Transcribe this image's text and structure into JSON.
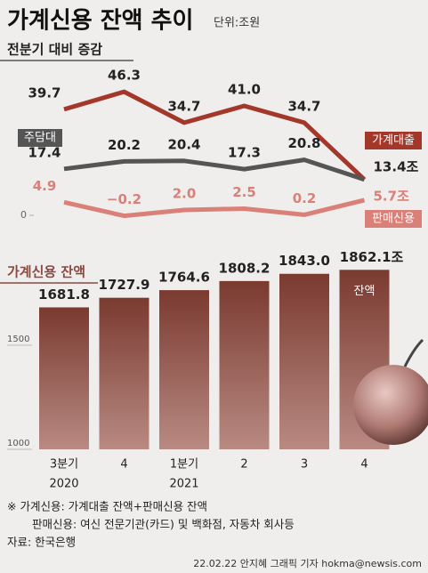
{
  "header": {
    "title": "가계신용 잔액 추이",
    "unit": "단위:조원"
  },
  "chart_data": [
    {
      "type": "line",
      "title": "전분기 대비 증감",
      "categories": [
        "3분기",
        "4",
        "1분기",
        "2",
        "3",
        "4"
      ],
      "ylim": [
        -3,
        50
      ],
      "yticks": [
        0
      ],
      "series": [
        {
          "name": "가계대출",
          "color": "#a3372a",
          "values": [
            39.7,
            46.3,
            34.7,
            41.0,
            34.7,
            13.4
          ],
          "value_labels": [
            "39.7",
            "46.3",
            "34.7",
            "41.0",
            "34.7",
            "13.4조"
          ]
        },
        {
          "name": "주담대",
          "color": "#555555",
          "values": [
            17.4,
            20.2,
            20.4,
            17.3,
            20.8,
            13.4
          ],
          "value_labels": [
            "17.4",
            "20.2",
            "20.4",
            "17.3",
            "20.8",
            null
          ]
        },
        {
          "name": "판매신용",
          "color": "#d98078",
          "values": [
            4.9,
            -0.2,
            2.0,
            2.5,
            0.2,
            5.7
          ],
          "value_labels": [
            "4.9",
            "−0.2",
            "2.0",
            "2.5",
            "0.2",
            "5.7조"
          ]
        }
      ]
    },
    {
      "type": "bar",
      "title": "가계신용 잔액",
      "categories": [
        "3분기",
        "4",
        "1분기",
        "2",
        "3",
        "4"
      ],
      "category_years": [
        "2020",
        null,
        "2021",
        null,
        null,
        null
      ],
      "values": [
        1681.8,
        1727.9,
        1764.6,
        1808.2,
        1843.0,
        1862.1
      ],
      "value_labels": [
        "1681.8",
        "1727.9",
        "1764.6",
        "1808.2",
        "1843.0",
        "1862.1조"
      ],
      "annotation": "잔액",
      "color": "#8a4a40",
      "ylim": [
        1000,
        2000
      ],
      "yticks": [
        1000,
        1500
      ]
    }
  ],
  "notes": [
    "※ 가계신용: 가계대출 잔액+판매신용 잔액",
    "판매신용: 여신 전문기관(카드) 및 백화점, 자동차 회사등",
    "자료: 한국은행"
  ],
  "credit": "22.02.22 안지혜 그래픽 기자 hokma@newsis.com"
}
